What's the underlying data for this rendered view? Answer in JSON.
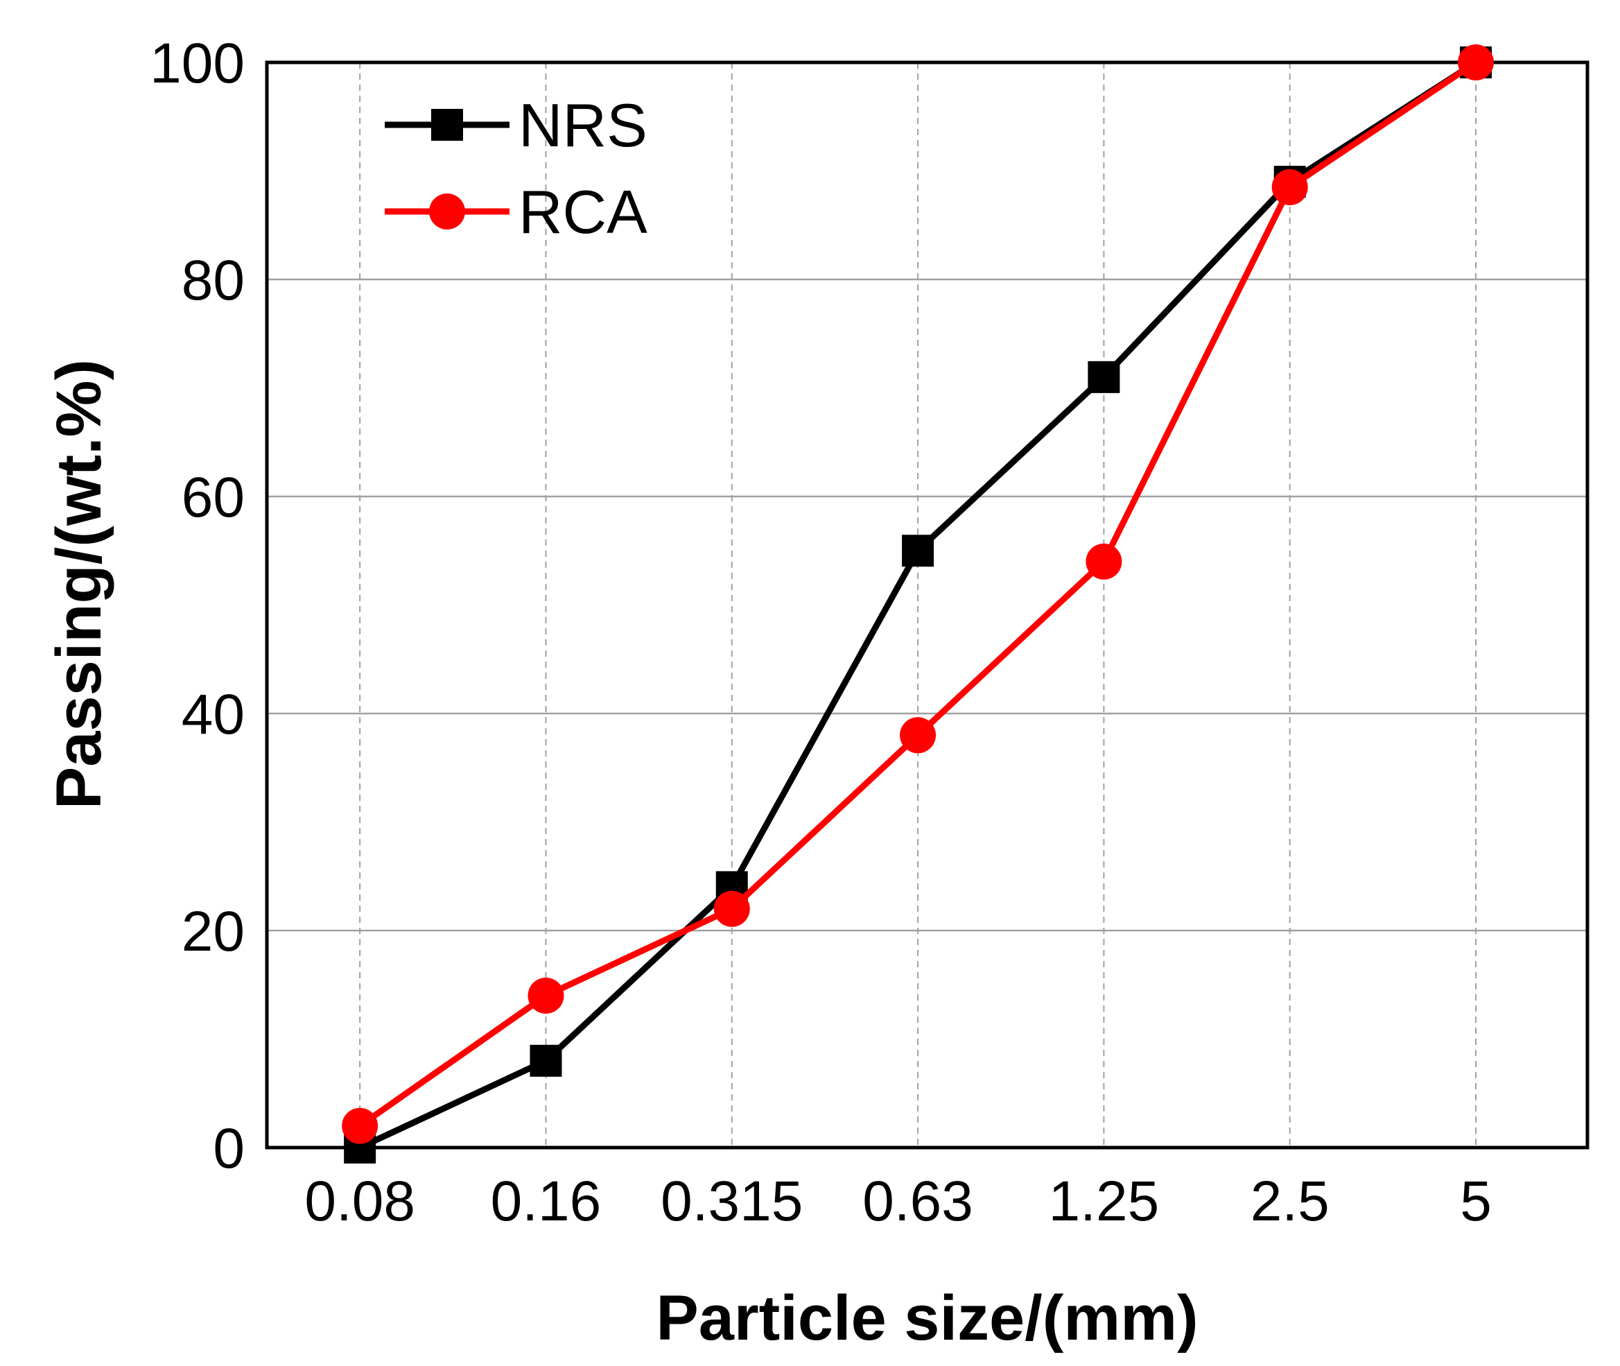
{
  "chart_data": {
    "type": "line",
    "title": "",
    "xlabel": "Particle size/(mm)",
    "ylabel": "Passing/(wt.%)",
    "categories": [
      "0.08",
      "0.16",
      "0.315",
      "0.63",
      "1.25",
      "2.5",
      "5"
    ],
    "ylim": [
      0,
      100
    ],
    "yticks": [
      "0",
      "20",
      "40",
      "60",
      "80",
      "100"
    ],
    "grid": true,
    "legend_position": "top-left",
    "series": [
      {
        "name": "NRS",
        "marker": "square",
        "color": "#000000",
        "values": [
          0,
          8,
          24,
          55,
          71,
          89,
          100
        ]
      },
      {
        "name": "RCA",
        "marker": "circle",
        "color": "#ff0000",
        "values": [
          2,
          14,
          22,
          38,
          54,
          88.5,
          100
        ]
      }
    ]
  }
}
